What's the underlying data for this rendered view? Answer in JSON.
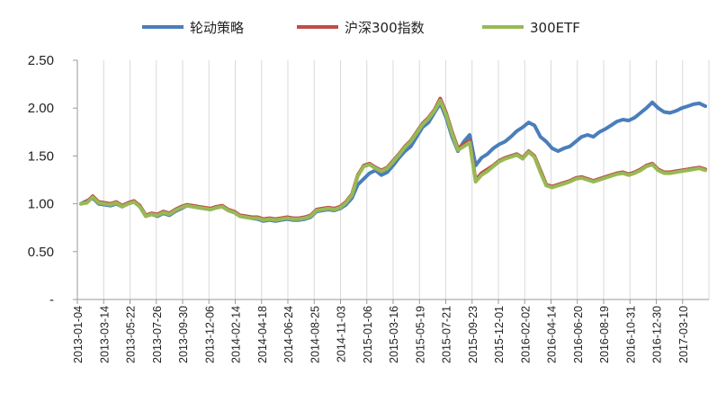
{
  "chart_data": {
    "type": "line",
    "title": "",
    "xlabel": "",
    "ylabel": "",
    "ylim": [
      0,
      2.5
    ],
    "y_ticks": [
      {
        "value": 0,
        "label": "-"
      },
      {
        "value": 0.5,
        "label": "0.50"
      },
      {
        "value": 1.0,
        "label": "1.00"
      },
      {
        "value": 1.5,
        "label": "1.50"
      },
      {
        "value": 2.0,
        "label": "2.00"
      },
      {
        "value": 2.5,
        "label": "2.50"
      }
    ],
    "x_ticks": [
      "2013-01-04",
      "2013-03-14",
      "2013-05-22",
      "2013-07-26",
      "2013-09-30",
      "2013-12-06",
      "2014-02-14",
      "2014-04-18",
      "2014-06-24",
      "2014-08-25",
      "2014-11-03",
      "2015-01-06",
      "2015-03-16",
      "2015-05-19",
      "2015-07-21",
      "2015-09-23",
      "2015-12-01",
      "2016-02-02",
      "2016-04-14",
      "2016-06-20",
      "2016-08-19",
      "2016-10-31",
      "2016-12-30",
      "2017-03-10"
    ],
    "legend_position": "top",
    "grid": "vertical",
    "colors": {
      "series1": "#4a7ebb",
      "series2": "#be4b48",
      "series3": "#98b954"
    },
    "series": [
      {
        "name": "轮动策略",
        "color": "#4a7ebb",
        "values": [
          1.0,
          1.03,
          1.06,
          1.0,
          0.99,
          0.98,
          1.0,
          0.97,
          1.0,
          1.02,
          0.97,
          0.87,
          0.89,
          0.87,
          0.9,
          0.88,
          0.92,
          0.95,
          0.98,
          0.97,
          0.96,
          0.95,
          0.94,
          0.96,
          0.97,
          0.93,
          0.91,
          0.87,
          0.86,
          0.85,
          0.84,
          0.82,
          0.83,
          0.82,
          0.83,
          0.84,
          0.83,
          0.83,
          0.84,
          0.86,
          0.92,
          0.93,
          0.94,
          0.93,
          0.95,
          0.99,
          1.06,
          1.2,
          1.26,
          1.32,
          1.35,
          1.3,
          1.33,
          1.4,
          1.48,
          1.55,
          1.6,
          1.7,
          1.8,
          1.85,
          1.95,
          2.05,
          1.9,
          1.7,
          1.55,
          1.65,
          1.72,
          1.4,
          1.48,
          1.52,
          1.58,
          1.62,
          1.65,
          1.7,
          1.76,
          1.8,
          1.85,
          1.82,
          1.7,
          1.65,
          1.58,
          1.55,
          1.58,
          1.6,
          1.65,
          1.7,
          1.72,
          1.7,
          1.75,
          1.78,
          1.82,
          1.86,
          1.88,
          1.87,
          1.9,
          1.95,
          2.0,
          2.06,
          2.0,
          1.96,
          1.95,
          1.97,
          2.0,
          2.02,
          2.04,
          2.05,
          2.02
        ]
      },
      {
        "name": "沪深300指数",
        "color": "#be4b48",
        "values": [
          1.0,
          1.02,
          1.08,
          1.02,
          1.01,
          1.0,
          1.02,
          0.98,
          1.01,
          1.03,
          0.98,
          0.88,
          0.9,
          0.89,
          0.92,
          0.9,
          0.94,
          0.97,
          0.99,
          0.98,
          0.97,
          0.96,
          0.95,
          0.97,
          0.98,
          0.94,
          0.92,
          0.88,
          0.87,
          0.86,
          0.86,
          0.84,
          0.85,
          0.84,
          0.85,
          0.86,
          0.85,
          0.85,
          0.86,
          0.88,
          0.94,
          0.95,
          0.96,
          0.95,
          0.97,
          1.02,
          1.1,
          1.3,
          1.4,
          1.42,
          1.38,
          1.35,
          1.38,
          1.45,
          1.52,
          1.6,
          1.66,
          1.75,
          1.84,
          1.9,
          1.98,
          2.1,
          1.95,
          1.75,
          1.58,
          1.62,
          1.66,
          1.25,
          1.32,
          1.36,
          1.4,
          1.45,
          1.48,
          1.5,
          1.52,
          1.48,
          1.55,
          1.5,
          1.35,
          1.2,
          1.18,
          1.2,
          1.22,
          1.24,
          1.27,
          1.28,
          1.26,
          1.24,
          1.26,
          1.28,
          1.3,
          1.32,
          1.33,
          1.31,
          1.33,
          1.36,
          1.4,
          1.42,
          1.36,
          1.33,
          1.33,
          1.34,
          1.35,
          1.36,
          1.37,
          1.38,
          1.36
        ]
      },
      {
        "name": "300ETF",
        "color": "#98b954",
        "values": [
          1.0,
          1.01,
          1.07,
          1.01,
          1.0,
          0.99,
          1.01,
          0.97,
          1.0,
          1.02,
          0.97,
          0.87,
          0.89,
          0.88,
          0.91,
          0.89,
          0.93,
          0.96,
          0.98,
          0.97,
          0.96,
          0.95,
          0.94,
          0.96,
          0.97,
          0.93,
          0.91,
          0.87,
          0.86,
          0.85,
          0.85,
          0.83,
          0.84,
          0.83,
          0.84,
          0.85,
          0.84,
          0.84,
          0.85,
          0.87,
          0.93,
          0.94,
          0.95,
          0.94,
          0.96,
          1.01,
          1.09,
          1.29,
          1.39,
          1.41,
          1.37,
          1.34,
          1.37,
          1.44,
          1.51,
          1.59,
          1.65,
          1.74,
          1.83,
          1.89,
          1.97,
          2.08,
          1.93,
          1.73,
          1.56,
          1.6,
          1.64,
          1.23,
          1.3,
          1.34,
          1.39,
          1.44,
          1.47,
          1.49,
          1.51,
          1.47,
          1.54,
          1.49,
          1.33,
          1.19,
          1.17,
          1.19,
          1.21,
          1.23,
          1.26,
          1.27,
          1.25,
          1.23,
          1.25,
          1.27,
          1.29,
          1.31,
          1.32,
          1.3,
          1.32,
          1.35,
          1.39,
          1.41,
          1.35,
          1.32,
          1.32,
          1.33,
          1.34,
          1.35,
          1.36,
          1.37,
          1.35
        ]
      }
    ]
  }
}
